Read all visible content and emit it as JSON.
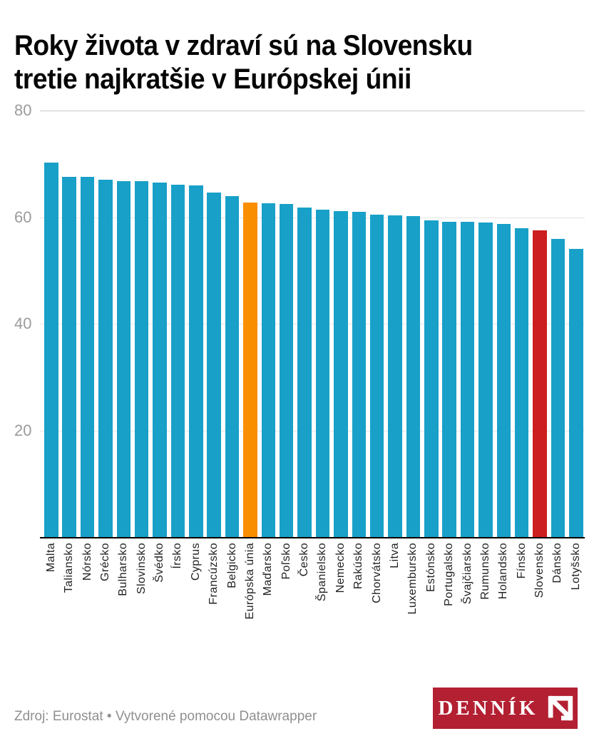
{
  "header": {
    "title": "Roky života v zdraví sú na Slovensku\ntretie najkratšie v Európskej únii"
  },
  "chart_data": {
    "type": "bar",
    "title": "Roky života v zdraví sú na Slovensku tretie najkratšie v Európskej únii",
    "xlabel": "",
    "ylabel": "",
    "unit": "roky",
    "categories": [
      "Malta",
      "Taliansko",
      "Nórsko",
      "Grécko",
      "Bulharsko",
      "Slovinsko",
      "Švédko",
      "Írsko",
      "Cyprus",
      "Francúzsko",
      "Belgicko",
      "Európska únia",
      "Maďarsko",
      "Poľsko",
      "Česko",
      "Španielsko",
      "Nemecko",
      "Rakúsko",
      "Chorvátsko",
      "Litva",
      "Luxembursko",
      "Estónsko",
      "Portugalsko",
      "Švajčiarsko",
      "Rumunsko",
      "Holandsko",
      "Fínsko",
      "Slovensko",
      "Dánsko",
      "Lotyšsko"
    ],
    "values": [
      70.2,
      67.6,
      67.5,
      67.0,
      66.8,
      66.7,
      66.5,
      66.1,
      66.0,
      64.6,
      63.9,
      62.7,
      62.6,
      62.5,
      61.8,
      61.4,
      61.1,
      61.0,
      60.5,
      60.4,
      60.2,
      59.4,
      59.2,
      59.1,
      59.0,
      58.7,
      58.0,
      57.5,
      55.9,
      54.1
    ],
    "ylim": [
      0,
      80
    ],
    "yticks": [
      20,
      40,
      60,
      80
    ],
    "grid": "horizontal",
    "legend": "none",
    "colors": {
      "bar_default": "#18a0c8",
      "grid_color": "#e4e4e4",
      "grid_top_color": "#c6c6c6",
      "axis_color": "#000000",
      "y_tick_label_color": "#9b9b9b",
      "x_label_color": "#222222"
    },
    "highlight_bars": [
      {
        "category": "Európska únia",
        "color": "#f98e00"
      },
      {
        "category": "Slovensko",
        "color": "#cc1e1e"
      }
    ]
  },
  "footer": {
    "source": "Zdroj: Eurostat • Vytvorené pomocou Datawrapper",
    "logo_text": "DENNÍK",
    "logo_background": "#b32032"
  }
}
